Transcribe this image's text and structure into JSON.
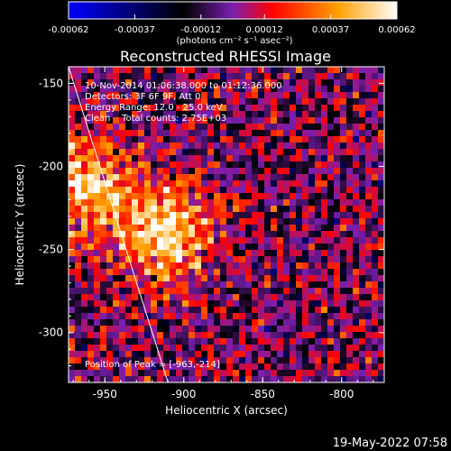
{
  "chart_data": {
    "type": "heatmap",
    "title": "Reconstructed RHESSI Image",
    "xlabel": "Heliocentric X (arcsec)",
    "ylabel": "Heliocentric Y (arcsec)",
    "xlim": [
      -973,
      -773
    ],
    "ylim": [
      -330,
      -140
    ],
    "x_ticks": [
      "-950",
      "-900",
      "-850",
      "-800"
    ],
    "x_tick_values": [
      -950,
      -900,
      -850,
      -800
    ],
    "y_ticks": [
      "-150",
      "-200",
      "-250",
      "-300"
    ],
    "y_tick_values": [
      -150,
      -200,
      -250,
      -300
    ],
    "colorbar": {
      "ticks": [
        "-0.00062",
        "-0.00037",
        "-0.00012",
        "0.00012",
        "0.00037",
        "0.00062"
      ],
      "tick_values": [
        -0.00062,
        -0.00037,
        -0.00012,
        0.00012,
        0.00037,
        0.00062
      ],
      "label": "(photons cm⁻² s⁻¹ asec⁻²)",
      "range": [
        -0.00062,
        0.00062
      ],
      "colormap": [
        "#0000ff",
        "#000000",
        "#7a1fb0",
        "#ff0000",
        "#ffa000",
        "#ffffff"
      ]
    },
    "info_lines": [
      "10-Nov-2014 01:06:38.000 to 01:12:36.000",
      "Detectors: 3F 6F 9F, Att 0",
      "Energy Range: 12.0 - 25.0 keV",
      "Clean    Total counts: 2.75E+03"
    ],
    "peak_label": "Position of Peak = [-963,-214]",
    "peak": [
      -963,
      -214
    ],
    "limb_line": [
      [
        -973,
        -140
      ],
      [
        -910,
        -330
      ]
    ],
    "emission_centers": [
      {
        "x": -910,
        "y": -240,
        "strength": 1.0
      },
      {
        "x": -965,
        "y": -212,
        "strength": 0.95
      }
    ]
  },
  "timestamp": "19-May-2022 07:58",
  "colors": {
    "background": "#000000",
    "axes": "#ffffff",
    "limb": "#ffffff"
  }
}
